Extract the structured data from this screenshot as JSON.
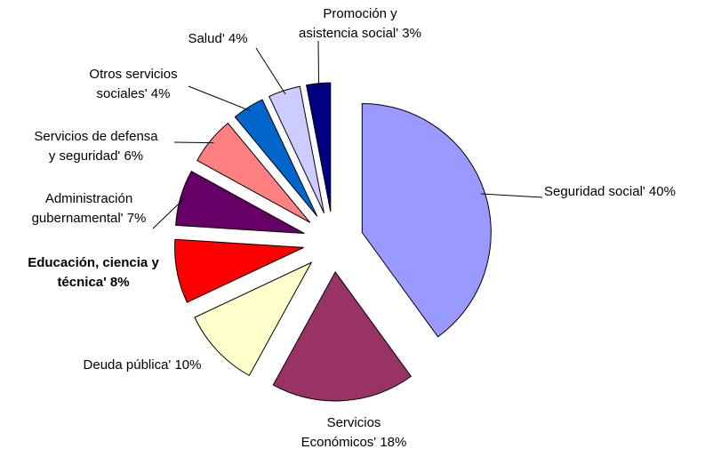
{
  "chart_data": {
    "type": "pie",
    "categories": [
      [
        "Seguridad social' 40%"
      ],
      [
        "Servicios",
        "Económicos' 18%"
      ],
      [
        "Deuda pública' 10%"
      ],
      [
        "Educación, ciencia y",
        "técnica' 8%"
      ],
      [
        "Administración",
        "gubernamental' 7%"
      ],
      [
        "Servicios de defensa",
        "y seguridad' 6%"
      ],
      [
        "Otros servicios",
        "sociales' 4%"
      ],
      [
        "Salud' 4%"
      ],
      [
        "Promoción y",
        "asistencia social' 3%"
      ]
    ],
    "values": [
      40,
      18,
      10,
      8,
      7,
      6,
      4,
      4,
      3
    ],
    "colors": [
      "#9999ff",
      "#993366",
      "#ffffcc",
      "#ff0000",
      "#660066",
      "#ff8080",
      "#0066cc",
      "#ccccff",
      "#000080"
    ]
  }
}
